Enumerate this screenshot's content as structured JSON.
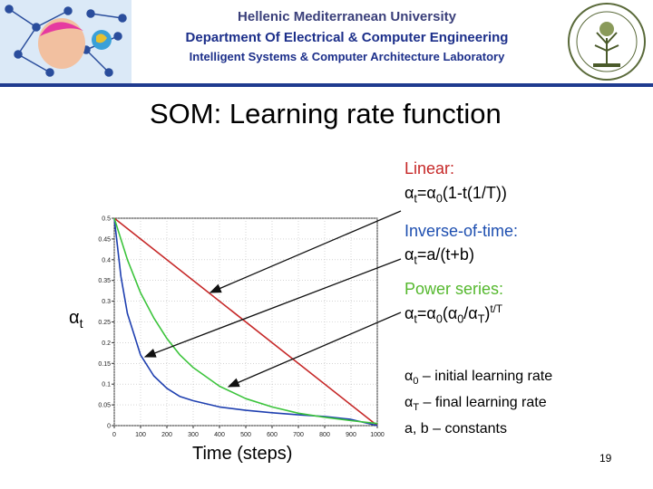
{
  "header": {
    "university": "Hellenic Mediterranean University",
    "department": "Department Of Electrical & Computer Engineering",
    "lab": "Intelligent Systems & Computer Architecture Laboratory"
  },
  "slide": {
    "title": "SOM: Learning rate function",
    "page_number": "19"
  },
  "annotations": {
    "linear": {
      "name": "Linear:",
      "formula_lhs": "α",
      "lhs_sub": "t",
      "formula_eq": "=α",
      "eq_sub": "0",
      "formula_rest": "(1-t(1/T))"
    },
    "inverse": {
      "name": "Inverse-of-time:",
      "formula_lhs": "α",
      "lhs_sub": "t",
      "formula_rest": "=a/(t+b)"
    },
    "power": {
      "name": "Power series:",
      "formula_lhs": "α",
      "lhs_sub": "t",
      "formula_eq": "=α",
      "eq_sub": "0",
      "paren_open": "(α",
      "paren_sub": "0",
      "slash": "/α",
      "slash_sub": "T",
      "paren_close": ")",
      "exponent": "t/T"
    },
    "legend": {
      "a0_sym": "α",
      "a0_sub": "0",
      "a0_text": " – initial learning rate",
      "aT_sym": "α",
      "aT_sub": "T",
      "aT_text": " – final learning rate",
      "ab_text": "a, b – constants"
    }
  },
  "colors": {
    "linear": "#c62828",
    "inverse": "#1e3fb0",
    "power": "#3cc43c",
    "header_line": "#1f3b8f"
  },
  "chart_data": {
    "type": "line",
    "xlabel": "Time (steps)",
    "ylabel_symbol": "α",
    "ylabel_sub": "t",
    "xlim": [
      0,
      1000
    ],
    "ylim": [
      0,
      0.5
    ],
    "x_ticks": [
      "0",
      "100",
      "200",
      "300",
      "400",
      "500",
      "600",
      "700",
      "800",
      "900",
      "1000"
    ],
    "y_ticks": [
      "0",
      "0.05",
      "0.1",
      "0.15",
      "0.2",
      "0.25",
      "0.3",
      "0.35",
      "0.4",
      "0.45",
      "0.5"
    ],
    "series": [
      {
        "name": "Linear",
        "x": [
          0,
          1000
        ],
        "values": [
          0.5,
          0.0
        ]
      },
      {
        "name": "Inverse-of-time",
        "x": [
          0,
          25,
          50,
          100,
          150,
          200,
          250,
          300,
          400,
          500,
          600,
          700,
          800,
          900,
          1000
        ],
        "values": [
          0.5,
          0.36,
          0.27,
          0.17,
          0.12,
          0.09,
          0.07,
          0.06,
          0.045,
          0.037,
          0.031,
          0.026,
          0.022,
          0.015,
          0.0
        ]
      },
      {
        "name": "Power series",
        "x": [
          0,
          50,
          100,
          150,
          200,
          250,
          300,
          400,
          500,
          600,
          700,
          800,
          900,
          1000
        ],
        "values": [
          0.5,
          0.4,
          0.32,
          0.26,
          0.21,
          0.17,
          0.14,
          0.095,
          0.065,
          0.045,
          0.03,
          0.02,
          0.012,
          0.005
        ]
      }
    ]
  }
}
